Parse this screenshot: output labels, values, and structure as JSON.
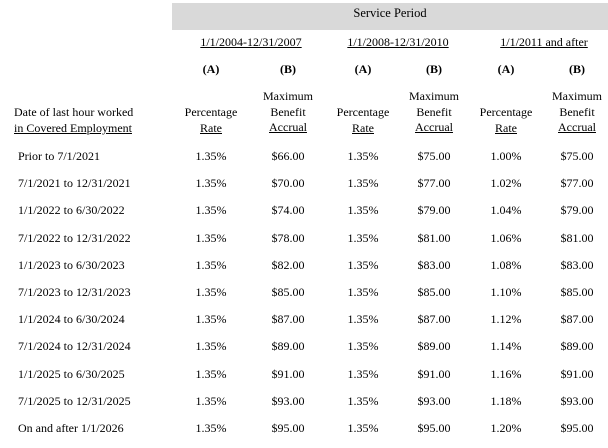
{
  "service_period_title": "Service Period",
  "periods": [
    "1/1/2004-12/31/2007",
    "1/1/2008-12/31/2010",
    "1/1/2011 and after"
  ],
  "column_keys": [
    "(A)",
    "(B)",
    "(A)",
    "(B)",
    "(A)",
    "(B)"
  ],
  "row_header": {
    "line1": "Date of last hour worked",
    "line2": "in Covered Employment"
  },
  "col_header_a": [
    "Percentage",
    "Rate"
  ],
  "col_header_b": [
    "Maximum",
    "Benefit",
    "Accrual"
  ],
  "rows": [
    {
      "label": "Prior to 7/1/2021",
      "values": [
        "1.35%",
        "$66.00",
        "1.35%",
        "$75.00",
        "1.00%",
        "$75.00"
      ]
    },
    {
      "label": "7/1/2021 to 12/31/2021",
      "values": [
        "1.35%",
        "$70.00",
        "1.35%",
        "$77.00",
        "1.02%",
        "$77.00"
      ]
    },
    {
      "label": "1/1/2022 to 6/30/2022",
      "values": [
        "1.35%",
        "$74.00",
        "1.35%",
        "$79.00",
        "1.04%",
        "$79.00"
      ]
    },
    {
      "label": "7/1/2022 to 12/31/2022",
      "values": [
        "1.35%",
        "$78.00",
        "1.35%",
        "$81.00",
        "1.06%",
        "$81.00"
      ]
    },
    {
      "label": "1/1/2023 to 6/30/2023",
      "values": [
        "1.35%",
        "$82.00",
        "1.35%",
        "$83.00",
        "1.08%",
        "$83.00"
      ]
    },
    {
      "label": "7/1/2023 to 12/31/2023",
      "values": [
        "1.35%",
        "$85.00",
        "1.35%",
        "$85.00",
        "1.10%",
        "$85.00"
      ]
    },
    {
      "label": "1/1/2024 to 6/30/2024",
      "values": [
        "1.35%",
        "$87.00",
        "1.35%",
        "$87.00",
        "1.12%",
        "$87.00"
      ]
    },
    {
      "label": "7/1/2024 to 12/31/2024",
      "values": [
        "1.35%",
        "$89.00",
        "1.35%",
        "$89.00",
        "1.14%",
        "$89.00"
      ]
    },
    {
      "label": "1/1/2025 to 6/30/2025",
      "values": [
        "1.35%",
        "$91.00",
        "1.35%",
        "$91.00",
        "1.16%",
        "$91.00"
      ]
    },
    {
      "label": "7/1/2025 to 12/31/2025",
      "values": [
        "1.35%",
        "$93.00",
        "1.35%",
        "$93.00",
        "1.18%",
        "$93.00"
      ]
    },
    {
      "label": "On and after 1/1/2026",
      "values": [
        "1.35%",
        "$95.00",
        "1.35%",
        "$95.00",
        "1.20%",
        "$95.00"
      ]
    }
  ]
}
